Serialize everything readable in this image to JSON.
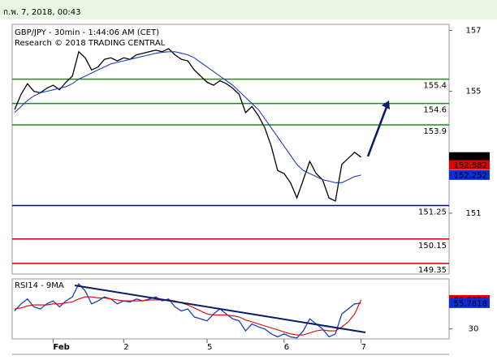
{
  "header": {
    "timestamp": "ก.พ. 7, 2018, 00:43"
  },
  "chart_data": [
    {
      "type": "line",
      "title": "GBP/JPY - 30min - 1:44:06 AM (CET)",
      "subtitle": "Research © 2018 TRADING CENTRAL",
      "categories": [
        null,
        null,
        null,
        null,
        null,
        null,
        "Feb",
        null,
        null,
        null,
        null,
        null,
        null,
        null,
        null,
        null,
        null,
        "2",
        null,
        null,
        null,
        null,
        null,
        null,
        null,
        null,
        null,
        null,
        null,
        null,
        "5",
        null,
        null,
        null,
        null,
        null,
        null,
        null,
        null,
        null,
        null,
        null,
        "6",
        null,
        null,
        null,
        null,
        null,
        null,
        null,
        null,
        null,
        null,
        null,
        "7"
      ],
      "series": [
        {
          "color": "#000000",
          "values": [
            154.4,
            154.9,
            155.25,
            155.0,
            154.95,
            155.1,
            155.2,
            155.05,
            155.3,
            155.5,
            156.3,
            156.1,
            155.7,
            155.8,
            156.05,
            156.1,
            156.0,
            156.1,
            156.05,
            156.2,
            156.25,
            156.3,
            156.35,
            156.3,
            156.4,
            156.2,
            156.05,
            156.0,
            155.7,
            155.5,
            155.3,
            155.2,
            155.35,
            155.25,
            155.1,
            154.9,
            154.3,
            154.5,
            154.2,
            153.8,
            153.2,
            152.4,
            152.3,
            152.0,
            151.5,
            152.1,
            152.7,
            152.3,
            152.1,
            151.5,
            151.4,
            152.6,
            152.8,
            153.0,
            152.84
          ]
        },
        {
          "color": "#1a3fbf",
          "values": [
            154.3,
            154.5,
            154.7,
            154.85,
            154.95,
            155.0,
            155.05,
            155.1,
            155.15,
            155.25,
            155.4,
            155.5,
            155.6,
            155.7,
            155.8,
            155.9,
            155.95,
            156.0,
            156.05,
            156.1,
            156.15,
            156.2,
            156.25,
            156.28,
            156.3,
            156.3,
            156.25,
            156.2,
            156.1,
            155.95,
            155.8,
            155.65,
            155.5,
            155.35,
            155.2,
            155.0,
            154.8,
            154.6,
            154.4,
            154.1,
            153.8,
            153.5,
            153.2,
            152.9,
            152.6,
            152.4,
            152.3,
            152.2,
            152.1,
            152.05,
            152.0,
            152.0,
            152.1,
            152.2,
            152.252
          ]
        }
      ],
      "ylim": [
        149.0,
        157.2
      ],
      "yticks": [
        157,
        155,
        151
      ],
      "levels": [
        {
          "value": 155.4,
          "color": "#1f8a1f"
        },
        {
          "value": 154.6,
          "color": "#1f8a1f"
        },
        {
          "value": 153.9,
          "color": "#1f8a1f"
        },
        {
          "value": 151.25,
          "color": "#0000cc"
        },
        {
          "value": 150.15,
          "color": "#cc0000"
        },
        {
          "value": 149.35,
          "color": "#cc0000"
        }
      ],
      "price_markers": [
        {
          "value": 152.841,
          "color": "#000000"
        },
        {
          "value": 152.582,
          "color": "#e00000"
        },
        {
          "value": 152.252,
          "color": "#0a2fd8"
        }
      ]
    },
    {
      "type": "line",
      "title": "RSI14 - 9MA",
      "series": [
        {
          "color": "#1a3fbf",
          "values": [
            48,
            55,
            60,
            52,
            50,
            55,
            58,
            52,
            58,
            62,
            75,
            68,
            55,
            58,
            62,
            60,
            55,
            58,
            57,
            60,
            58,
            60,
            62,
            58,
            60,
            52,
            48,
            50,
            42,
            40,
            38,
            45,
            50,
            45,
            40,
            38,
            28,
            35,
            32,
            30,
            25,
            22,
            25,
            22,
            21,
            28,
            40,
            35,
            30,
            22,
            25,
            45,
            50,
            55,
            55.78
          ]
        },
        {
          "color": "#e00000",
          "values": [
            50,
            51,
            53,
            54,
            54,
            54,
            55,
            55,
            56,
            57,
            60,
            62,
            62,
            61,
            61,
            60,
            59,
            58,
            58,
            58,
            58,
            59,
            59,
            59,
            59,
            58,
            56,
            54,
            51,
            48,
            45,
            44,
            44,
            44,
            43,
            42,
            39,
            37,
            35,
            33,
            31,
            29,
            27,
            25,
            24,
            24,
            26,
            28,
            29,
            28,
            28,
            32,
            37,
            45,
            58.99
          ]
        }
      ],
      "ylim": [
        20,
        80
      ],
      "yticks": [
        30
      ],
      "price_markers": [
        {
          "value": 58.9856,
          "color": "#e00000"
        },
        {
          "value": 55.7818,
          "color": "#0a2fd8"
        }
      ]
    }
  ]
}
